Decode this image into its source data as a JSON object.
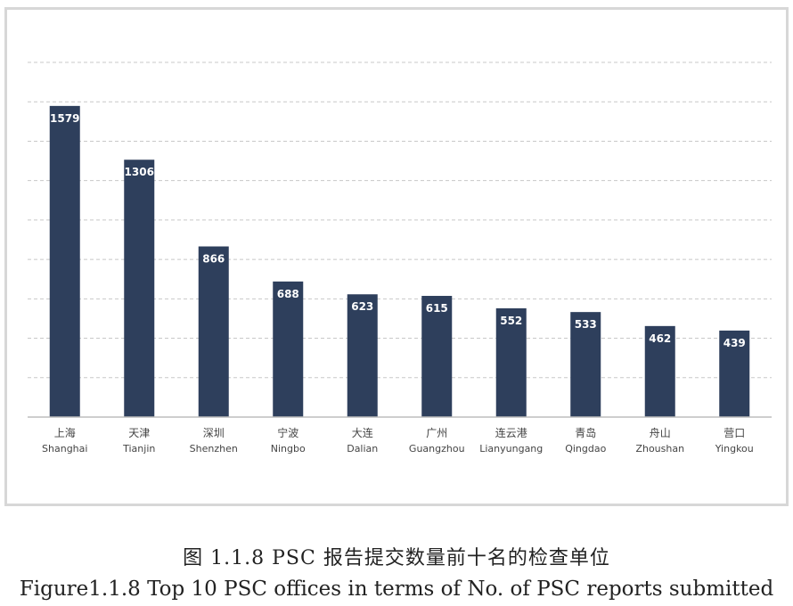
{
  "chart_data": {
    "type": "bar",
    "categories": [
      {
        "cn": "上海",
        "en": "Shanghai"
      },
      {
        "cn": "天津",
        "en": "Tianjin"
      },
      {
        "cn": "深圳",
        "en": "Shenzhen"
      },
      {
        "cn": "宁波",
        "en": "Ningbo"
      },
      {
        "cn": "大连",
        "en": "Dalian"
      },
      {
        "cn": "广州",
        "en": "Guangzhou"
      },
      {
        "cn": "连云港",
        "en": "Lianyungang"
      },
      {
        "cn": "青岛",
        "en": "Qingdao"
      },
      {
        "cn": "舟山",
        "en": "Zhoushan"
      },
      {
        "cn": "营口",
        "en": "Yingkou"
      }
    ],
    "values": [
      1579,
      1306,
      866,
      688,
      623,
      615,
      552,
      533,
      462,
      439
    ],
    "ylim": [
      0,
      1800
    ],
    "grid": true,
    "legend": "none",
    "colors": {
      "bar": "#2e3f5c",
      "label": "#ffffff",
      "grid": "#c8c8c8",
      "axis": "#bdbdbd"
    }
  },
  "caption": {
    "cn": "图 1.1.8 PSC 报告提交数量前十名的检查单位",
    "en": "Figure1.1.8 Top 10 PSC offices in terms of No. of PSC reports submitted"
  }
}
